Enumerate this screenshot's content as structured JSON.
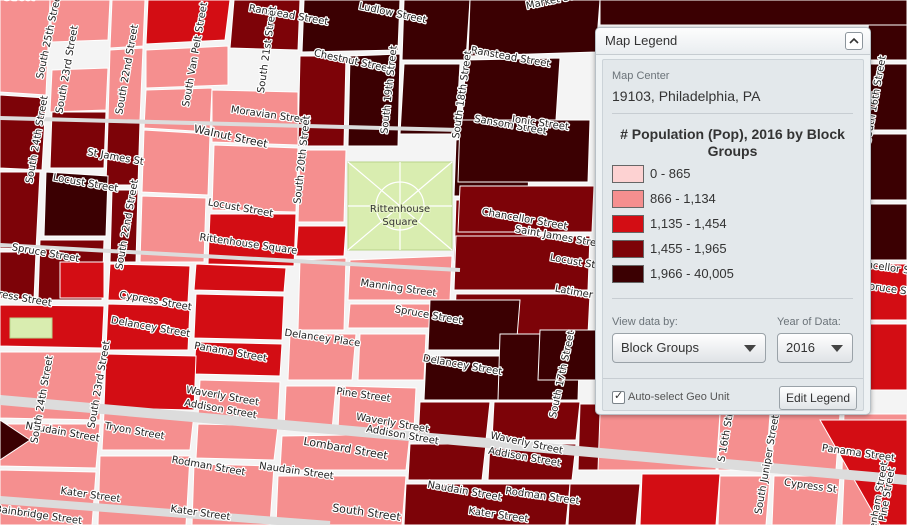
{
  "palette": {
    "c1": "#fdd2d2",
    "c2": "#f58f8f",
    "c3": "#d30d14",
    "c4": "#7d0308",
    "c5": "#3b0002",
    "street": "#f4f4f4",
    "park": "#d9edb0"
  },
  "map": {
    "park_label_line1": "Rittenhouse",
    "park_label_line2": "Square",
    "streets": [
      {
        "text": "Walnut Street",
        "big": true
      },
      {
        "text": "Chestnut Street",
        "big": false
      },
      {
        "text": "Ranstead Street",
        "big": false
      },
      {
        "text": "Ludlow Street",
        "big": false
      },
      {
        "text": "Market Street",
        "big": false
      },
      {
        "text": "Moravian Street",
        "big": false
      },
      {
        "text": "Sansom Street",
        "big": false
      },
      {
        "text": "Ionic Street",
        "big": false
      },
      {
        "text": "St James St",
        "big": false
      },
      {
        "text": "Locust Street",
        "big": false
      },
      {
        "text": "Locust Street",
        "big": false
      },
      {
        "text": "Rittenhouse Square",
        "big": false
      },
      {
        "text": "Spruce Street",
        "big": false
      },
      {
        "text": "Spruce Street",
        "big": false
      },
      {
        "text": "Cypress Street",
        "big": false
      },
      {
        "text": "Delancey Street",
        "big": false
      },
      {
        "text": "Delancey Place",
        "big": false
      },
      {
        "text": "Delancey Street",
        "big": false
      },
      {
        "text": "Panama Street",
        "big": false
      },
      {
        "text": "Manning Street",
        "big": false
      },
      {
        "text": "Pine Street",
        "big": false
      },
      {
        "text": "Waverly Street",
        "big": false
      },
      {
        "text": "Addison Street",
        "big": false
      },
      {
        "text": "Waverly Street",
        "big": false
      },
      {
        "text": "Addison Street",
        "big": false
      },
      {
        "text": "Naudain Street",
        "big": false
      },
      {
        "text": "Tryon Street",
        "big": false
      },
      {
        "text": "Lombard Street",
        "big": true
      },
      {
        "text": "Rodman Street",
        "big": false
      },
      {
        "text": "Naudain Street",
        "big": false
      },
      {
        "text": "Kater Street",
        "big": false
      },
      {
        "text": "Kater Street",
        "big": false
      },
      {
        "text": "Bainbridge Street",
        "big": false
      },
      {
        "text": "South Street",
        "big": true
      },
      {
        "text": "Chancellor Street",
        "big": false
      },
      {
        "text": "Saint James Street",
        "big": false
      },
      {
        "text": "Latimer St",
        "big": false
      },
      {
        "text": "Locust Street",
        "big": false
      },
      {
        "text": "Waverly Street",
        "big": false
      },
      {
        "text": "Addison Street",
        "big": false
      },
      {
        "text": "Naudain Street",
        "big": false
      },
      {
        "text": "Rodman Street",
        "big": false
      },
      {
        "text": "Kater Street",
        "big": false
      },
      {
        "text": "Panama Street",
        "big": false
      },
      {
        "text": "Spruce Street",
        "big": false
      },
      {
        "text": "Cypress St",
        "big": false
      },
      {
        "text": "Chancellor Street",
        "big": false
      },
      {
        "text": "Ranstead Street",
        "big": false
      },
      {
        "text": "Ludlow Street",
        "big": false
      },
      {
        "text": "South 24th Street",
        "big": false
      },
      {
        "text": "South 23rd Street",
        "big": false
      },
      {
        "text": "South 22nd Street",
        "big": false
      },
      {
        "text": "South Van Pelt Street",
        "big": false
      },
      {
        "text": "South 21st Street",
        "big": false
      },
      {
        "text": "South 20th Street",
        "big": false
      },
      {
        "text": "South 19th Street",
        "big": false
      },
      {
        "text": "South 18th Street",
        "big": false
      },
      {
        "text": "South 17th Street",
        "big": false
      },
      {
        "text": "South 16th Street",
        "big": false
      },
      {
        "text": "South 25th Street",
        "big": false
      },
      {
        "text": "South 24th Street",
        "big": false
      },
      {
        "text": "South 23rd Street",
        "big": false
      },
      {
        "text": "South 22nd Street",
        "big": false
      },
      {
        "text": "South Juniper Street",
        "big": false
      },
      {
        "text": "S 16th Street",
        "big": false
      },
      {
        "text": "Sydenham Street",
        "big": false
      },
      {
        "text": "Cypress Street",
        "big": false
      },
      {
        "text": "Pine Street",
        "big": false
      }
    ]
  },
  "legend": {
    "header_title": "Map Legend",
    "center_label": "Map Center",
    "center_value": "19103, Philadelphia, PA",
    "title": "# Population (Pop), 2016 by Block Groups",
    "classes": [
      {
        "range": "0 - 865",
        "color": "#fdd2d2"
      },
      {
        "range": "866 - 1,134",
        "color": "#f58f8f"
      },
      {
        "range": "1,135 - 1,454",
        "color": "#d30d14"
      },
      {
        "range": "1,455 - 1,965",
        "color": "#7d0308"
      },
      {
        "range": "1,966 - 40,005",
        "color": "#3b0002"
      }
    ],
    "view_by_label": "View data by:",
    "view_by_value": "Block Groups",
    "year_label": "Year of Data:",
    "year_value": "2016",
    "auto_select_label": "Auto-select Geo Unit",
    "edit_button": "Edit Legend"
  }
}
